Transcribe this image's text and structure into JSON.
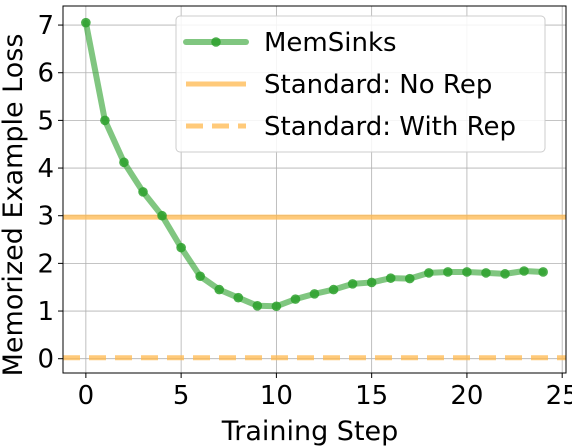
{
  "chart_data": {
    "type": "line",
    "xlabel": "Training Step",
    "ylabel": "Memorized Example Loss",
    "xlim": [
      -1.2,
      25.2
    ],
    "ylim": [
      -0.3,
      7.4
    ],
    "xticks": [
      0,
      5,
      10,
      15,
      20,
      25
    ],
    "yticks": [
      0,
      1,
      2,
      3,
      4,
      5,
      6,
      7
    ],
    "grid": true,
    "legend_position": "top-right",
    "series": [
      {
        "name": "MemSinks",
        "style": "line-with-markers",
        "color": "#2ca02c",
        "x": [
          0,
          1,
          2,
          3,
          4,
          5,
          6,
          7,
          8,
          9,
          10,
          11,
          12,
          13,
          14,
          15,
          16,
          17,
          18,
          19,
          20,
          21,
          22,
          23,
          24
        ],
        "y": [
          7.05,
          5.0,
          4.12,
          3.5,
          3.0,
          2.33,
          1.73,
          1.45,
          1.28,
          1.11,
          1.1,
          1.25,
          1.36,
          1.45,
          1.57,
          1.6,
          1.69,
          1.68,
          1.8,
          1.82,
          1.82,
          1.8,
          1.78,
          1.84,
          1.82
        ]
      },
      {
        "name": "Standard: No Rep",
        "style": "hline-solid",
        "color": "#ffb84d",
        "value": 2.97
      },
      {
        "name": "Standard: With Rep",
        "style": "hline-dashed",
        "color": "#ffb84d",
        "value": 0.02
      }
    ]
  }
}
